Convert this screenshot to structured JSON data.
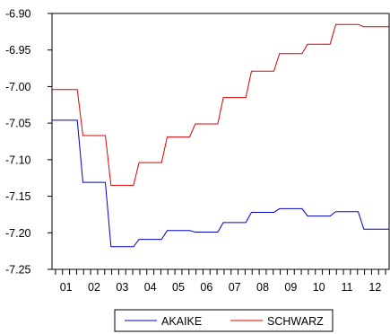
{
  "chart_data": {
    "type": "line",
    "categories": [
      "01",
      "02",
      "03",
      "04",
      "05",
      "06",
      "07",
      "08",
      "09",
      "10",
      "11",
      "12"
    ],
    "ylim": [
      -7.25,
      -6.9
    ],
    "yticks": [
      "-6.90",
      "-6.95",
      "-7.00",
      "-7.05",
      "-7.10",
      "-7.15",
      "-7.20",
      "-7.25"
    ],
    "ytick_values": [
      -6.9,
      -6.95,
      -7.0,
      -7.05,
      -7.1,
      -7.15,
      -7.2,
      -7.25
    ],
    "grid": false,
    "legend_position": "bottom",
    "series": [
      {
        "name": "AKAIKE",
        "color": "#0000cc",
        "values": [
          -7.046,
          -7.131,
          -7.219,
          -7.209,
          -7.197,
          -7.199,
          -7.186,
          -7.172,
          -7.167,
          -7.177,
          -7.171,
          -7.195
        ]
      },
      {
        "name": "SCHWARZ",
        "color": "#dd0000",
        "values": [
          -7.004,
          -7.067,
          -7.135,
          -7.104,
          -7.069,
          -7.051,
          -7.015,
          -6.979,
          -6.955,
          -6.942,
          -6.915,
          -6.918
        ]
      }
    ]
  }
}
